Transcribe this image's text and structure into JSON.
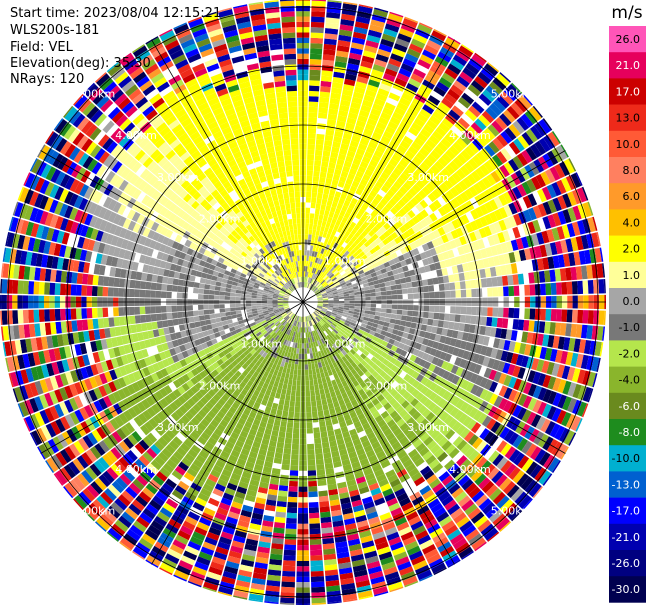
{
  "header": {
    "start_time": "Start time: 2023/08/04 12:15:21",
    "instrument": "WLS200s-181",
    "field": "Field: VEL",
    "elevation": "Elevation(deg): 35.30",
    "nrays": "NRays: 120"
  },
  "colorbar": {
    "unit": "m/s",
    "ticks": [
      "26.0",
      "21.0",
      "17.0",
      "13.0",
      "10.0",
      "8.0",
      "6.0",
      "4.0",
      "2.0",
      "1.0",
      "0.0",
      "-1.0",
      "-2.0",
      "-4.0",
      "-6.0",
      "-8.0",
      "-10.0",
      "-13.0",
      "-17.0",
      "-21.0",
      "-26.0",
      "-30.0"
    ],
    "colors": [
      "#ff55b8",
      "#e6005c",
      "#cc0000",
      "#ee2a1a",
      "#ff5a36",
      "#ff8060",
      "#ff9a2a",
      "#ffc000",
      "#ffff00",
      "#ffff99",
      "#a6a6a6",
      "#787878",
      "#b5e64c",
      "#8ab52c",
      "#6a8a1e",
      "#1e8c1e",
      "#00b0d0",
      "#0060d0",
      "#0000ff",
      "#0000b0",
      "#000080",
      "#000050"
    ]
  },
  "chart_data": {
    "type": "ppi",
    "field": "VEL",
    "units": "m/s",
    "n_rays": 120,
    "elevation_deg": 35.3,
    "range_ring_labels": [
      "1.00km",
      "2.00km",
      "3.00km",
      "4.00km",
      "5.00km"
    ],
    "vmin": -30.0,
    "vmax": 26.0
  }
}
